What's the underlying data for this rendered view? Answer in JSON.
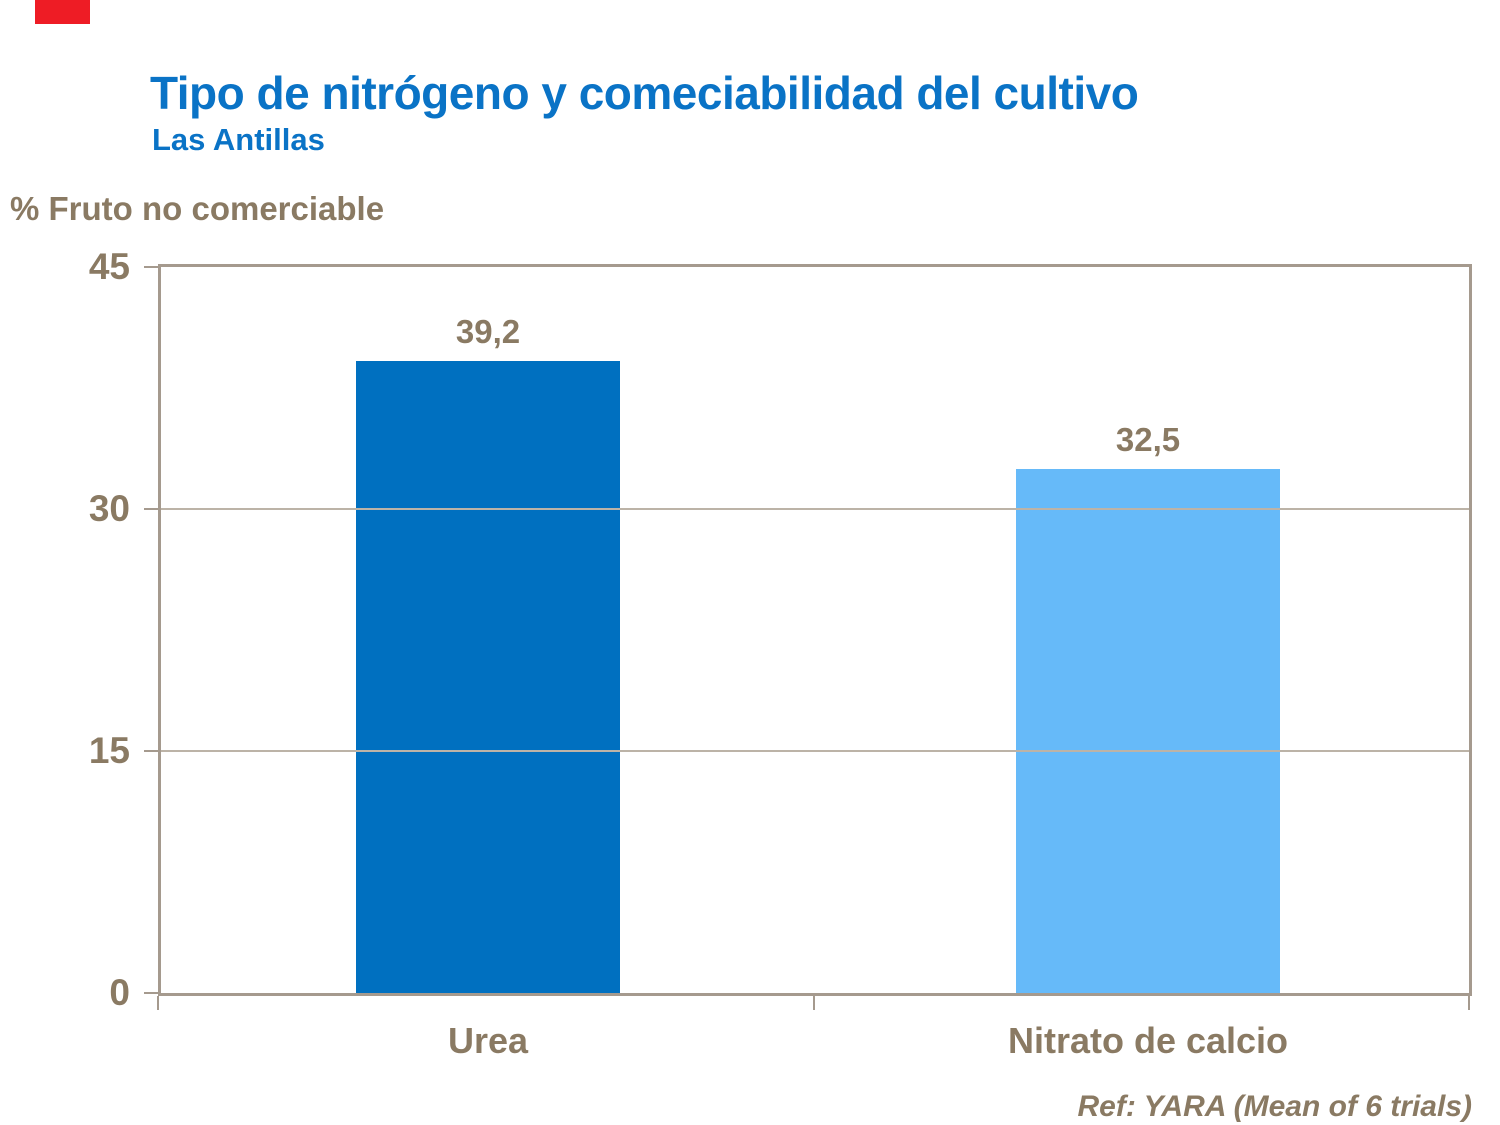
{
  "page": {
    "background": "#ffffff"
  },
  "decor": {
    "red_badge_color": "#ee1c25"
  },
  "header": {
    "title": "Tipo de nitrógeno y comeciabilidad del cultivo",
    "subtitle": "Las Antillas",
    "title_color": "#0a73c6"
  },
  "footer": {
    "ref": "Ref: YARA (Mean of 6 trials)"
  },
  "colors": {
    "text_taupe": "#8a7a63",
    "axis_frame": "#a59a8e",
    "gridline": "#bcb3a7",
    "tick": "#a59a8e"
  },
  "chart_data": {
    "type": "bar",
    "title": "Tipo de nitrógeno y comeciabilidad del cultivo",
    "subtitle": "Las Antillas",
    "xlabel": "",
    "ylabel": "% Fruto no comerciable",
    "categories": [
      "Urea",
      "Nitrato de calcio"
    ],
    "values": [
      39.2,
      32.5
    ],
    "value_labels": [
      "39,2",
      "32,5"
    ],
    "bar_colors": [
      "#0070c0",
      "#66baf9"
    ],
    "yticks": [
      45,
      30,
      15,
      0
    ],
    "ylim": [
      0,
      45
    ],
    "grid": true,
    "legend": false,
    "annotation": "Ref: YARA (Mean of 6 trials)"
  }
}
